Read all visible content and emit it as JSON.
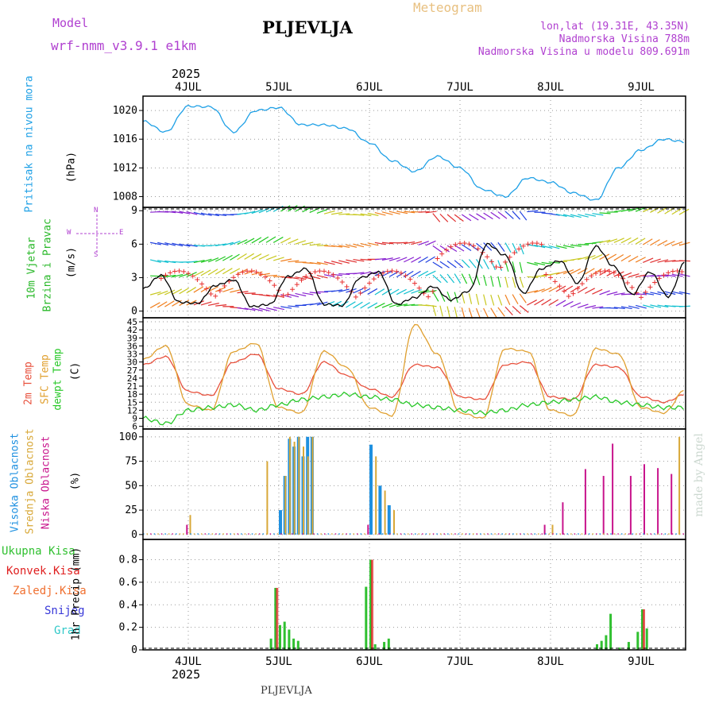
{
  "header": {
    "model_label": "Model",
    "model_name": "wrf-nmm_v3.9.1  e1km",
    "city": "PLJEVLJA",
    "product": "Meteogram",
    "coords": "lon,lat (19.31E, 43.35N)",
    "elevation": "Nadmorska Visina 788m",
    "model_elevation": "Nadmorska Visina u modelu 809.691m",
    "footer_city": "PLJEVLJA",
    "credit": "made by Angel",
    "year_top": "2025",
    "year_bottom": "2025"
  },
  "colors": {
    "pressure": "#1ea0e6",
    "temp2m": "#e8503c",
    "sfc": "#e0a030",
    "dewpt": "#28c828",
    "high_cloud": "#1e90e0",
    "mid_cloud": "#d8a838",
    "low_cloud": "#c8148c",
    "total_rain": "#30c030",
    "conv_rain": "#e02020",
    "grid": "#999999"
  },
  "panels": {
    "pressure": {
      "label": "Pritisak na nivou mora",
      "unit": "(hPa)"
    },
    "wind": {
      "label1": "10m Vjetar",
      "label2": "Brzina i Pravac",
      "unit": "(m/s)",
      "compass_n": "N",
      "compass_w": "W",
      "compass_e": "E",
      "compass_s": "S"
    },
    "temp": {
      "label1": "2m Temp",
      "label2": "SFC Temp",
      "label3": "dewpt Temp",
      "unit": "(C)"
    },
    "cloud": {
      "label1": "Visoka Oblacnost",
      "label2": "Srednja Oblacnost",
      "label3": "Niska Oblacnost",
      "unit": "(%)"
    },
    "precip": {
      "unit": "1hr Precip (mm)",
      "legend": [
        "Ukupna Kisa",
        "Konvek.Kisa",
        "Zaledj.Kisa",
        "Snijeg",
        "Grad"
      ]
    }
  },
  "chart_data": [
    {
      "type": "line",
      "name": "pressure",
      "x_day_labels": [
        "4JUL",
        "5JUL",
        "6JUL",
        "7JUL",
        "8JUL",
        "9JUL"
      ],
      "yticks": [
        1008,
        1012,
        1016,
        1020
      ],
      "ylim": [
        1006.5,
        1022
      ],
      "grid": true,
      "x": [
        0,
        0.25,
        0.5,
        0.75,
        1,
        1.25,
        1.5,
        1.75,
        2,
        2.25,
        2.5,
        2.75,
        3,
        3.25,
        3.5,
        3.75,
        4,
        4.25,
        4.5,
        4.75,
        5,
        5.25,
        5.5,
        5.75,
        6
      ],
      "values": [
        1018.5,
        1017,
        1020.6,
        1020.5,
        1017,
        1020,
        1020.4,
        1018,
        1018,
        1017.5,
        1015.5,
        1013,
        1011.5,
        1013.6,
        1012,
        1009,
        1008,
        1010.6,
        1010,
        1008.5,
        1007.5,
        1012,
        1014.5,
        1016,
        1015.6
      ]
    },
    {
      "type": "line",
      "name": "wind_speed",
      "yticks": [
        0,
        3,
        6,
        9
      ],
      "ylim": [
        -0.6,
        9.3
      ],
      "grid": true,
      "x": [
        0,
        0.2,
        0.4,
        0.6,
        0.8,
        1,
        1.2,
        1.4,
        1.6,
        1.8,
        2,
        2.2,
        2.4,
        2.6,
        2.8,
        3,
        3.2,
        3.4,
        3.6,
        3.8,
        4,
        4.2,
        4.4,
        4.6,
        4.8,
        5,
        5.2,
        5.4,
        5.6,
        5.8,
        6
      ],
      "values": [
        2,
        3.2,
        0.8,
        0.7,
        2.3,
        2.8,
        0.4,
        0.6,
        3.1,
        3.8,
        0.6,
        0.5,
        3,
        3.5,
        0.6,
        1.2,
        2.2,
        1,
        1.8,
        6,
        5,
        1.6,
        3.8,
        4.5,
        2.5,
        5.8,
        4,
        1.5,
        3.5,
        1.3,
        4.6
      ]
    },
    {
      "type": "line",
      "name": "temperature",
      "yticks": [
        6,
        9,
        12,
        15,
        18,
        21,
        24,
        27,
        30,
        33,
        36,
        39,
        42,
        45
      ],
      "ylim": [
        5,
        46.5
      ],
      "grid": true,
      "series": [
        {
          "name": "2m Temp",
          "x": [
            0,
            0.25,
            0.5,
            0.75,
            1,
            1.25,
            1.5,
            1.75,
            2,
            2.25,
            2.5,
            2.75,
            3,
            3.25,
            3.5,
            3.75,
            4,
            4.25,
            4.5,
            4.75,
            5,
            5.25,
            5.5,
            5.75,
            6
          ],
          "values": [
            29,
            32,
            19,
            17.5,
            30,
            33,
            20,
            18,
            30,
            25,
            20,
            17,
            29,
            28,
            17,
            16,
            29,
            30,
            17,
            16,
            29,
            28,
            17,
            15,
            18
          ]
        },
        {
          "name": "SFC Temp",
          "x": [
            0,
            0.25,
            0.5,
            0.75,
            1,
            1.25,
            1.5,
            1.75,
            2,
            2.25,
            2.5,
            2.75,
            3,
            3.25,
            3.5,
            3.75,
            4,
            4.25,
            4.5,
            4.75,
            5,
            5.25,
            5.5,
            5.75,
            6
          ],
          "values": [
            31,
            36,
            14,
            12,
            34,
            37,
            13,
            11,
            34,
            28,
            13,
            10,
            44,
            33,
            11,
            9,
            35,
            34,
            12,
            10,
            35,
            33,
            13,
            11,
            20
          ]
        },
        {
          "name": "dewpt Temp",
          "x": [
            0,
            0.25,
            0.5,
            0.75,
            1,
            1.25,
            1.5,
            1.75,
            2,
            2.25,
            2.5,
            2.75,
            3,
            3.25,
            3.5,
            3.75,
            4,
            4.25,
            4.5,
            4.75,
            5,
            5.25,
            5.5,
            5.75,
            6
          ],
          "values": [
            9,
            7,
            12,
            13,
            14,
            12,
            14,
            16,
            17,
            18,
            17,
            16,
            14,
            13,
            12,
            11,
            12,
            14,
            15,
            16,
            17,
            15,
            14,
            13,
            13
          ]
        }
      ]
    },
    {
      "type": "bar",
      "name": "cloud_cover",
      "yticks": [
        0,
        25,
        50,
        75,
        100
      ],
      "ylim": [
        -5,
        108
      ],
      "grid": true,
      "series": [
        {
          "name": "Visoka Oblacnost",
          "x": [
            1.5,
            1.55,
            1.6,
            1.65,
            1.7,
            1.75,
            1.8,
            1.85,
            2.5,
            2.6,
            2.7
          ],
          "values": [
            25,
            60,
            98,
            90,
            100,
            80,
            100,
            100,
            92,
            50,
            30
          ]
        },
        {
          "name": "Srednja Oblacnost",
          "x": [
            0.5,
            1.35,
            1.55,
            1.6,
            1.65,
            1.7,
            1.75,
            1.8,
            1.85,
            2.55,
            2.65,
            2.75,
            4.5,
            5.9,
            6
          ],
          "values": [
            20,
            75,
            60,
            100,
            95,
            100,
            90,
            80,
            100,
            80,
            45,
            25,
            10,
            100,
            72
          ]
        },
        {
          "name": "Niska Oblacnost",
          "x": [
            0.45,
            2.45,
            4.4,
            4.6,
            4.85,
            5.05,
            5.15,
            5.35,
            5.5,
            5.65,
            5.8
          ],
          "values": [
            10,
            10,
            10,
            33,
            67,
            60,
            93,
            60,
            72,
            68,
            62
          ]
        }
      ]
    },
    {
      "type": "bar",
      "name": "precipitation",
      "yticks": [
        0,
        0.2,
        0.4,
        0.6,
        0.8
      ],
      "ylim": [
        0,
        0.98
      ],
      "grid": true,
      "series": [
        {
          "name": "Ukupna Kisa",
          "x": [
            1.4,
            1.45,
            1.5,
            1.55,
            1.6,
            1.65,
            1.7,
            2.45,
            2.5,
            2.55,
            2.65,
            2.7,
            5,
            5.05,
            5.1,
            5.15,
            5.25,
            5.35,
            5.45,
            5.5,
            5.55
          ],
          "values": [
            0.1,
            0.55,
            0.22,
            0.25,
            0.18,
            0.1,
            0.08,
            0.56,
            0.8,
            0.05,
            0.07,
            0.1,
            0.05,
            0.08,
            0.13,
            0.32,
            0.02,
            0.07,
            0.16,
            0.36,
            0.19
          ]
        },
        {
          "name": "Konvek.Kisa",
          "x": [
            1.45,
            2.5,
            5.5
          ],
          "values": [
            0.55,
            0.8,
            0.36
          ]
        }
      ]
    }
  ]
}
